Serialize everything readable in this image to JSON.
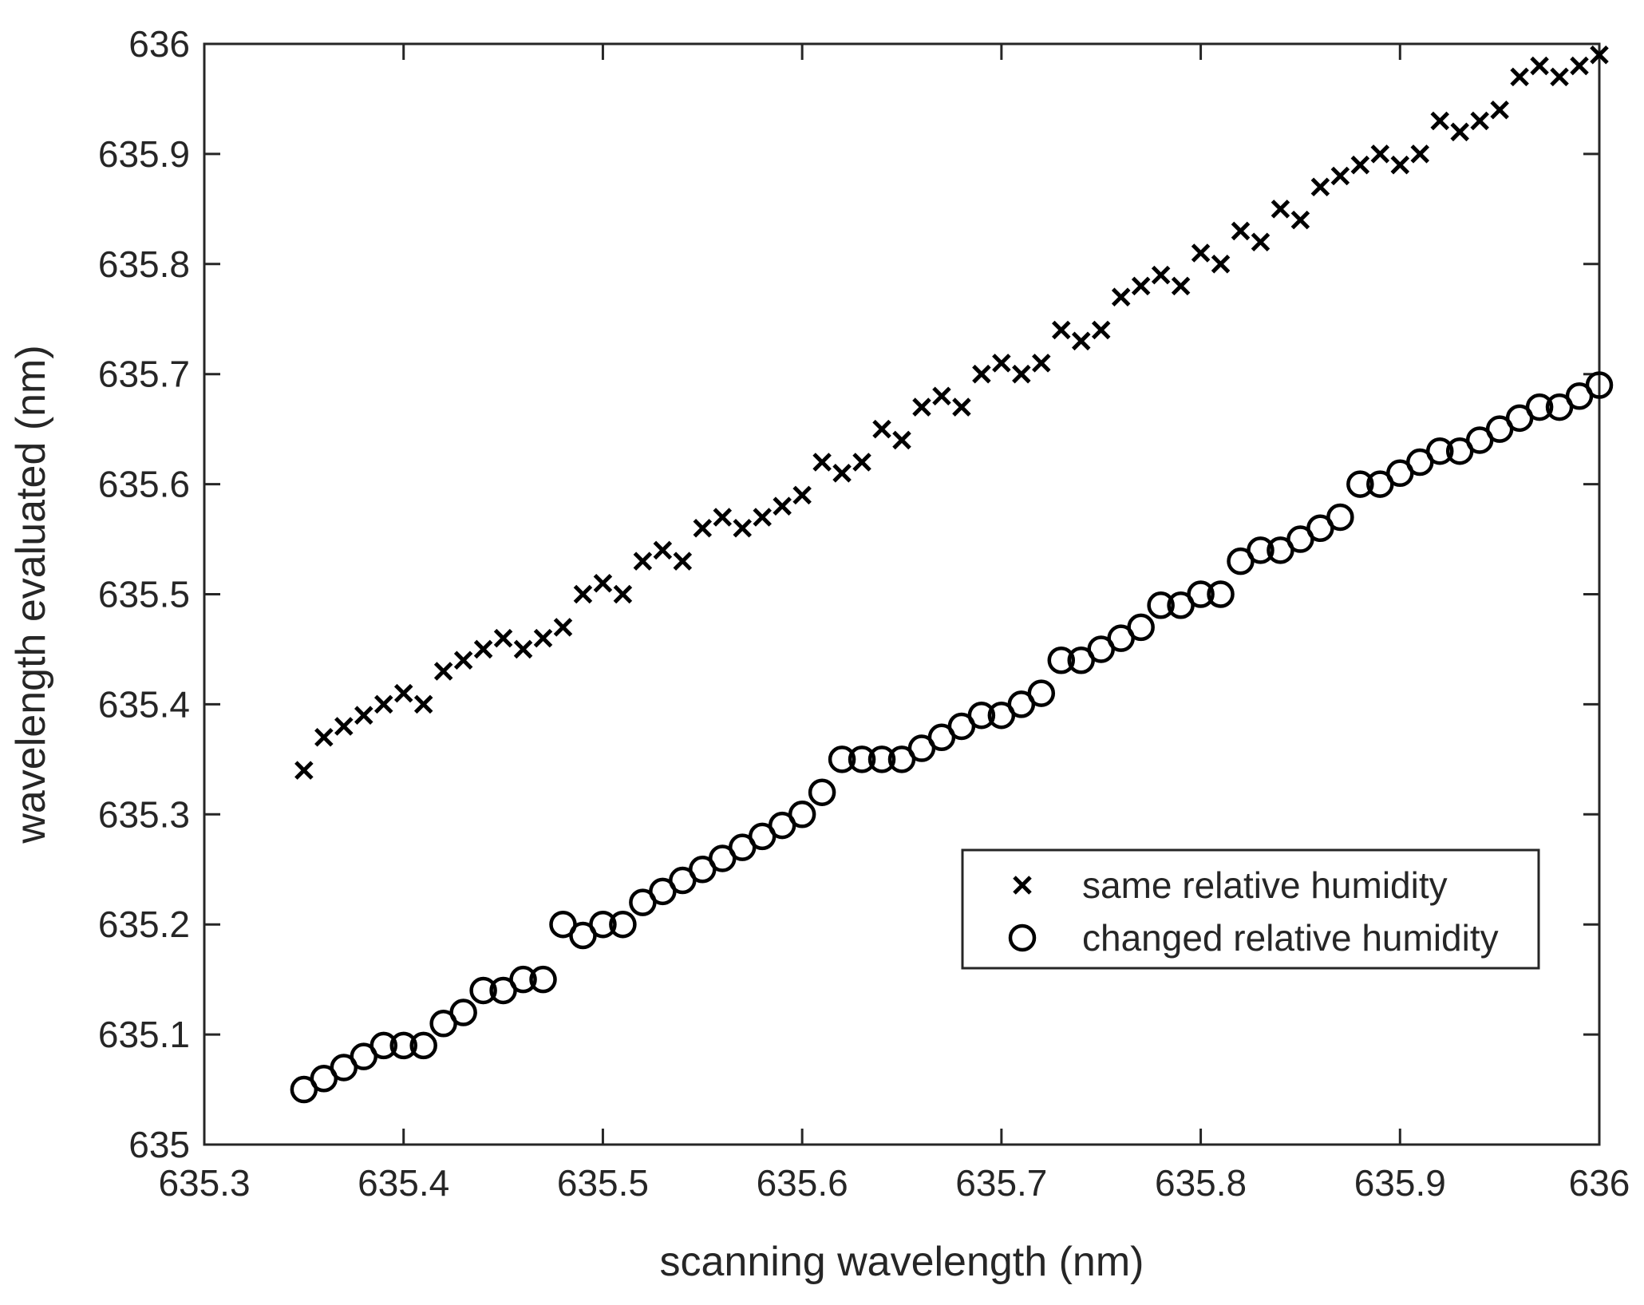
{
  "chart_data": {
    "type": "scatter",
    "title": "",
    "xlabel": "scanning wavelength (nm)",
    "ylabel": "wavelength evaluated (nm)",
    "xlim": [
      635.3,
      636
    ],
    "ylim": [
      635,
      636
    ],
    "xticks": [
      635.3,
      635.4,
      635.5,
      635.6,
      635.7,
      635.8,
      635.9,
      636
    ],
    "xtick_labels": [
      "635.3",
      "635.4",
      "635.5",
      "635.6",
      "635.7",
      "635.8",
      "635.9",
      "636"
    ],
    "yticks": [
      635,
      635.1,
      635.2,
      635.3,
      635.4,
      635.5,
      635.6,
      635.7,
      635.8,
      635.9,
      636
    ],
    "ytick_labels": [
      "635",
      "635.1",
      "635.2",
      "635.3",
      "635.4",
      "635.5",
      "635.6",
      "635.7",
      "635.8",
      "635.9",
      "636"
    ],
    "grid": false,
    "legend_position": "lower-right",
    "series": [
      {
        "name": "same relative humidity",
        "marker": "x",
        "color": "#000000",
        "x": [
          635.35,
          635.36,
          635.37,
          635.38,
          635.39,
          635.4,
          635.41,
          635.42,
          635.43,
          635.44,
          635.45,
          635.46,
          635.47,
          635.48,
          635.49,
          635.5,
          635.51,
          635.52,
          635.53,
          635.54,
          635.55,
          635.56,
          635.57,
          635.58,
          635.59,
          635.6,
          635.61,
          635.62,
          635.63,
          635.64,
          635.65,
          635.66,
          635.67,
          635.68,
          635.69,
          635.7,
          635.71,
          635.72,
          635.73,
          635.74,
          635.75,
          635.76,
          635.77,
          635.78,
          635.79,
          635.8,
          635.81,
          635.82,
          635.83,
          635.84,
          635.85,
          635.86,
          635.87,
          635.88,
          635.89,
          635.9,
          635.91,
          635.92,
          635.93,
          635.94,
          635.95,
          635.96,
          635.97,
          635.98,
          635.99,
          636.0
        ],
        "y": [
          635.34,
          635.37,
          635.38,
          635.39,
          635.4,
          635.41,
          635.4,
          635.43,
          635.44,
          635.45,
          635.46,
          635.45,
          635.46,
          635.47,
          635.5,
          635.51,
          635.5,
          635.53,
          635.54,
          635.53,
          635.56,
          635.57,
          635.56,
          635.57,
          635.58,
          635.59,
          635.62,
          635.61,
          635.62,
          635.65,
          635.64,
          635.67,
          635.68,
          635.67,
          635.7,
          635.71,
          635.7,
          635.71,
          635.74,
          635.73,
          635.74,
          635.77,
          635.78,
          635.79,
          635.78,
          635.81,
          635.8,
          635.83,
          635.82,
          635.85,
          635.84,
          635.87,
          635.88,
          635.89,
          635.9,
          635.89,
          635.9,
          635.93,
          635.92,
          635.93,
          635.94,
          635.97,
          635.98,
          635.97,
          635.98,
          635.99
        ]
      },
      {
        "name": "changed relative humidity",
        "marker": "o",
        "color": "#000000",
        "x": [
          635.35,
          635.36,
          635.37,
          635.38,
          635.39,
          635.4,
          635.41,
          635.42,
          635.43,
          635.44,
          635.45,
          635.46,
          635.47,
          635.48,
          635.49,
          635.5,
          635.51,
          635.52,
          635.53,
          635.54,
          635.55,
          635.56,
          635.57,
          635.58,
          635.59,
          635.6,
          635.61,
          635.62,
          635.63,
          635.64,
          635.65,
          635.66,
          635.67,
          635.68,
          635.69,
          635.7,
          635.71,
          635.72,
          635.73,
          635.74,
          635.75,
          635.76,
          635.77,
          635.78,
          635.79,
          635.8,
          635.81,
          635.82,
          635.83,
          635.84,
          635.85,
          635.86,
          635.87,
          635.88,
          635.89,
          635.9,
          635.91,
          635.92,
          635.93,
          635.94,
          635.95,
          635.96,
          635.97,
          635.98,
          635.99,
          636.0
        ],
        "y": [
          635.05,
          635.06,
          635.07,
          635.08,
          635.09,
          635.09,
          635.09,
          635.11,
          635.12,
          635.14,
          635.14,
          635.15,
          635.15,
          635.2,
          635.19,
          635.2,
          635.2,
          635.22,
          635.23,
          635.24,
          635.25,
          635.26,
          635.27,
          635.28,
          635.29,
          635.3,
          635.32,
          635.35,
          635.35,
          635.35,
          635.35,
          635.36,
          635.37,
          635.38,
          635.39,
          635.39,
          635.4,
          635.41,
          635.44,
          635.44,
          635.45,
          635.46,
          635.47,
          635.49,
          635.49,
          635.5,
          635.5,
          635.53,
          635.54,
          635.54,
          635.55,
          635.56,
          635.57,
          635.6,
          635.6,
          635.61,
          635.62,
          635.63,
          635.63,
          635.64,
          635.65,
          635.66,
          635.67,
          635.67,
          635.68,
          635.69
        ]
      }
    ]
  }
}
